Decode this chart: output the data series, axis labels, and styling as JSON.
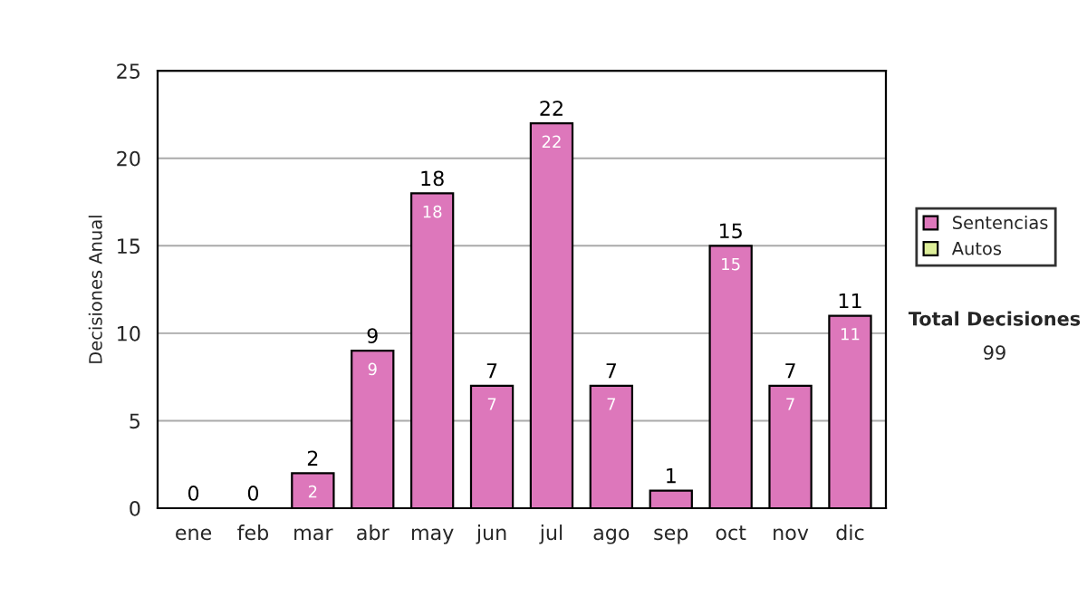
{
  "chart_data": {
    "type": "bar",
    "stacked": true,
    "ylabel": "Decisiones Anual",
    "categories": [
      "ene",
      "feb",
      "mar",
      "abr",
      "may",
      "jun",
      "jul",
      "ago",
      "sep",
      "oct",
      "nov",
      "dic"
    ],
    "series": [
      {
        "name": "Sentencias",
        "color": "#dd77bb",
        "values": [
          0,
          0,
          2,
          9,
          18,
          7,
          22,
          7,
          1,
          15,
          7,
          11
        ],
        "value_labels": [
          null,
          null,
          "2",
          "9",
          "18",
          "7",
          "22",
          "7",
          null,
          "15",
          "7",
          "11"
        ]
      },
      {
        "name": "Autos",
        "color": "#ddee99",
        "values": [
          0,
          0,
          0,
          0,
          0,
          0,
          0,
          0,
          0,
          0,
          0,
          0
        ]
      }
    ],
    "totals": [
      "0",
      "0",
      "2",
      "9",
      "18",
      "7",
      "22",
      "7",
      "1",
      "15",
      "7",
      "11"
    ],
    "ylim": [
      0,
      25
    ],
    "yticks": [
      0,
      5,
      10,
      15,
      20,
      25
    ],
    "grid": "y",
    "legend": "right",
    "annotations": [
      "Total Decisiones",
      "99"
    ]
  }
}
